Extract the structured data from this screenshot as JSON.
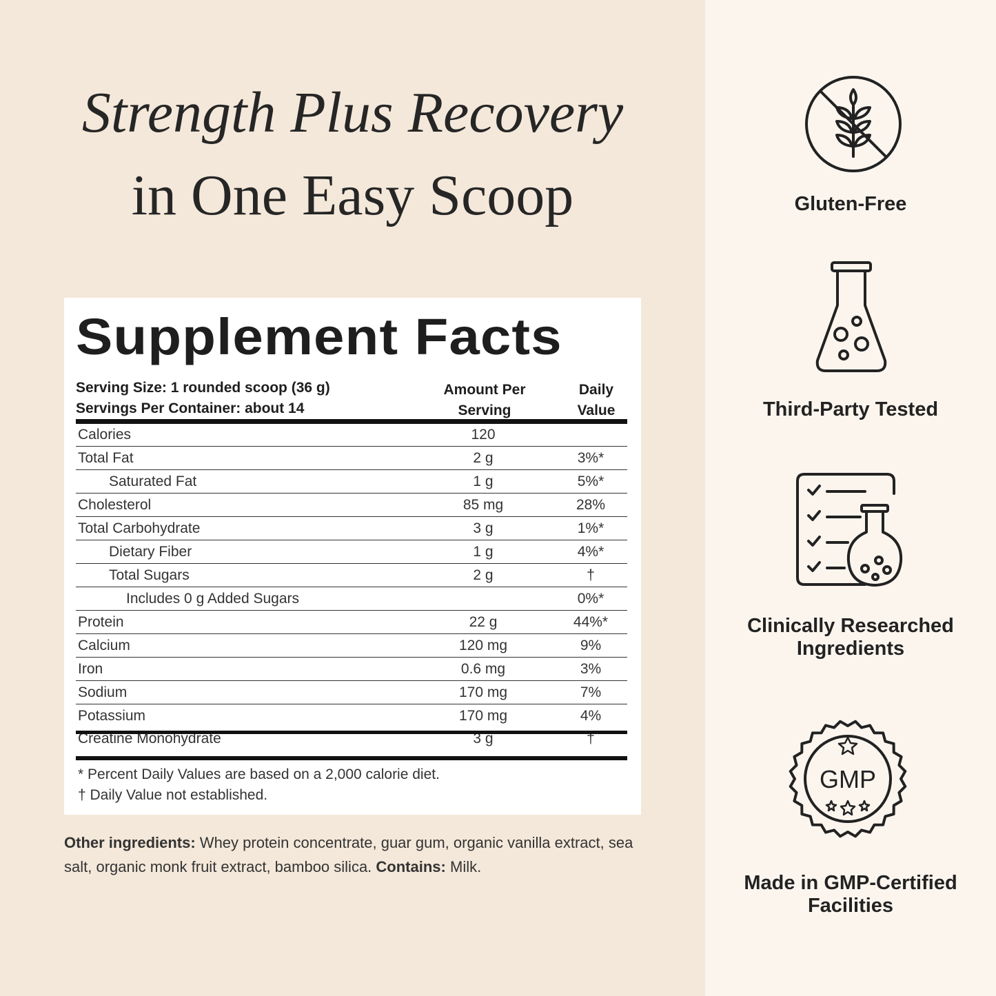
{
  "header": {
    "title": [
      "Strength Plus Recovery",
      "in One Easy Scoop"
    ]
  },
  "facts": {
    "title": "Supplement Facts",
    "serving_size": "Serving Size: 1 rounded scoop (36 g)",
    "servings": "Servings Per Container: about 14",
    "col_amount": [
      "Amount Per",
      "Serving"
    ],
    "col_dv": [
      "Daily",
      "Value"
    ],
    "rows": [
      {
        "name": "Calories",
        "amount": "120"
      },
      {
        "name": "Total Fat",
        "amount": "2 g",
        "dv": "3%*"
      },
      {
        "name": "Saturated Fat",
        "amount": "1 g",
        "dv": "5%*"
      },
      {
        "name": "Cholesterol",
        "amount": "85 mg",
        "dv": "28%"
      },
      {
        "name": "Total Carbohydrate",
        "amount": "3 g",
        "dv": "1%*"
      },
      {
        "name": "Dietary Fiber",
        "amount": "1 g",
        "dv": "4%*"
      },
      {
        "name": "Total Sugars",
        "amount": "2 g",
        "dv": "†"
      },
      {
        "name": "Includes 0 g Added Sugars",
        "dv": "0%*"
      },
      {
        "name": "Protein",
        "amount": "22 g",
        "dv": "44%*"
      },
      {
        "name": "Calcium",
        "amount": "120 mg",
        "dv": "9%"
      },
      {
        "name": "Iron",
        "amount": "0.6 mg",
        "dv": "3%"
      },
      {
        "name": "Sodium",
        "amount": "170 mg",
        "dv": "7%"
      },
      {
        "name": "Potassium",
        "amount": "170 mg",
        "dv": "4%"
      },
      {
        "name": "Creatine Monohydrate",
        "amount": "3 g",
        "dv": "†"
      }
    ],
    "footnotes": [
      "* Percent Daily Values are based on a 2,000 calorie diet.",
      "† Daily Value not established."
    ]
  },
  "ingredients": {
    "label": "Other ingredients:",
    "text": " Whey protein concentrate, guar gum, organic vanilla extract, sea salt, organic monk fruit extract, bamboo silica. ",
    "contains_label": "Contains:",
    "contains": " Milk."
  },
  "badges": [
    {
      "label": [
        "Gluten-Free"
      ]
    },
    {
      "label": [
        "Third-Party Tested"
      ]
    },
    {
      "label": [
        "Clinically Researched",
        "Ingredients"
      ]
    },
    {
      "label": [
        "Made in GMP-Certified",
        "Facilities"
      ],
      "seal_text": "GMP"
    }
  ]
}
